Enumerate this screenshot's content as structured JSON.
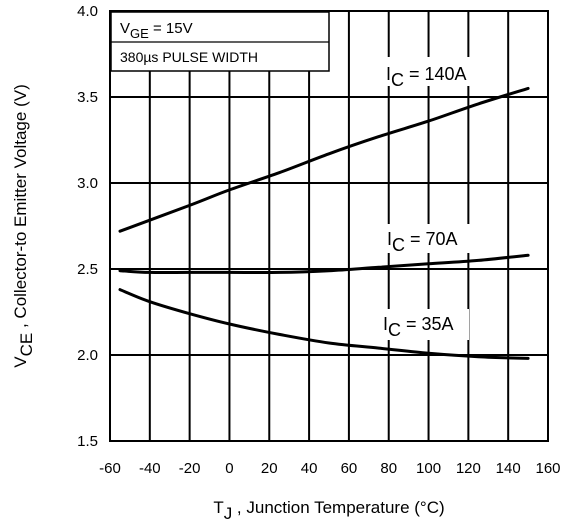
{
  "chart_data": {
    "type": "line",
    "title": "",
    "xlabel": {
      "main": "T",
      "sub": "J",
      "rest": " , Junction Temperature (°C)"
    },
    "ylabel": {
      "main": "V",
      "sub": "CE",
      "rest": " , Collector-to Emitter Voltage (V)"
    },
    "xlim": [
      -60,
      160
    ],
    "ylim": [
      1.5,
      4.0
    ],
    "xticks": [
      -60,
      -40,
      -20,
      0,
      20,
      40,
      60,
      80,
      100,
      120,
      140,
      160
    ],
    "yticks": [
      1.5,
      2.0,
      2.5,
      3.0,
      3.5,
      4.0
    ],
    "xtick_labels": [
      "-60",
      "-40",
      "-20",
      "0",
      "20",
      "40",
      "60",
      "80",
      "100",
      "120",
      "140",
      "160"
    ],
    "ytick_labels": [
      "1.5",
      "2.0",
      "2.5",
      "3.0",
      "3.5",
      "4.0"
    ],
    "grid": true,
    "condition_box": {
      "line1": {
        "main": "V",
        "sub": "GE",
        "rest": "  = 15V"
      },
      "line2": "380µs  PULSE  WIDTH"
    },
    "series": [
      {
        "name": {
          "main": "I",
          "sub": "C",
          "rest": " = 140A"
        },
        "x": [
          -55,
          -20,
          0,
          25,
          50,
          75,
          100,
          125,
          150
        ],
        "y": [
          2.72,
          2.87,
          2.96,
          3.06,
          3.17,
          3.27,
          3.36,
          3.46,
          3.55
        ]
      },
      {
        "name": {
          "main": "I",
          "sub": "C",
          "rest": " = 70A"
        },
        "x": [
          -55,
          -40,
          -20,
          0,
          25,
          50,
          75,
          100,
          125,
          150
        ],
        "y": [
          2.49,
          2.48,
          2.48,
          2.48,
          2.48,
          2.49,
          2.51,
          2.53,
          2.55,
          2.58
        ]
      },
      {
        "name": {
          "main": "I",
          "sub": "C",
          "rest": " = 35A"
        },
        "x": [
          -55,
          -40,
          -20,
          0,
          25,
          50,
          75,
          100,
          125,
          150
        ],
        "y": [
          2.38,
          2.31,
          2.24,
          2.18,
          2.12,
          2.07,
          2.04,
          2.01,
          1.99,
          1.98
        ]
      }
    ]
  },
  "colors": {
    "line": "#000000",
    "background": "#ffffff"
  }
}
